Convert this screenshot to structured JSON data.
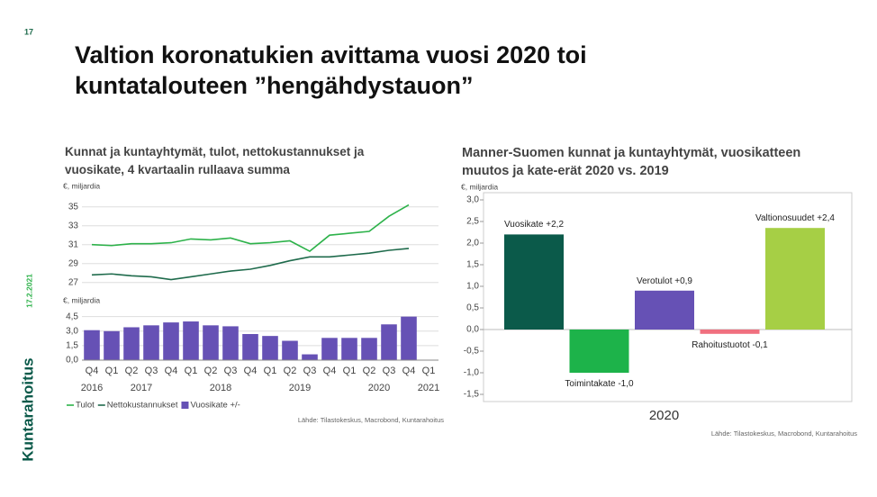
{
  "slide": {
    "page_number": "17",
    "title": "Valtion koronatukien avittama vuosi 2020 toi kuntatalouteen ”hengähdystauon”",
    "date": "17.2.2021",
    "logo": "Kuntarahoitus"
  },
  "chart_data": [
    {
      "type": "line",
      "title": "Kunnat ja kuntayhtymät, tulot, nettokustannukset ja vuosikate, 4 kvartaalin rullaava summa",
      "y_label": "€, miljardia",
      "series": [
        {
          "name": "Tulot",
          "color": "#2db24a",
          "values": [
            31.0,
            30.9,
            31.1,
            31.1,
            31.2,
            31.6,
            31.5,
            31.7,
            31.1,
            31.2,
            31.4,
            30.3,
            32.0,
            32.2,
            32.4,
            34.0,
            35.2,
            null
          ]
        },
        {
          "name": "Nettokustannukset",
          "color": "#1f6b4c",
          "values": [
            27.8,
            27.9,
            27.7,
            27.6,
            27.3,
            27.6,
            27.9,
            28.2,
            28.4,
            28.8,
            29.3,
            29.7,
            29.7,
            29.9,
            30.1,
            30.4,
            30.6,
            null
          ]
        }
      ],
      "ylim": [
        26.4,
        36.4
      ],
      "yticks": [
        27,
        29,
        31,
        33,
        35
      ],
      "grid": true
    },
    {
      "type": "bar",
      "y_label": "€, miljardia",
      "categories": [
        "Q4",
        "Q1",
        "Q2",
        "Q3",
        "Q4",
        "Q1",
        "Q2",
        "Q3",
        "Q4",
        "Q1",
        "Q2",
        "Q3",
        "Q4",
        "Q1",
        "Q2",
        "Q3",
        "Q4",
        "Q1"
      ],
      "year_labels": [
        "2016",
        null,
        "2017",
        null,
        null,
        null,
        "2018",
        null,
        null,
        null,
        "2019",
        null,
        null,
        null,
        "2020",
        null,
        null,
        "2021"
      ],
      "series": [
        {
          "name": "Vuosikate +/-",
          "color": "#6651b5",
          "values": [
            3.1,
            3.0,
            3.4,
            3.6,
            3.9,
            4.0,
            3.6,
            3.5,
            2.7,
            2.5,
            2.0,
            0.6,
            2.3,
            2.3,
            2.3,
            3.7,
            4.5,
            null
          ]
        }
      ],
      "ylim": [
        0,
        5.4
      ],
      "yticks": [
        {
          "value": 0,
          "label": "0,0"
        },
        {
          "value": 1.5,
          "label": "1,5"
        },
        {
          "value": 3,
          "label": "3,0"
        },
        {
          "value": 4.5,
          "label": "4,5"
        }
      ],
      "grid": true,
      "source": "Lähde: Tilastokeskus, Macrobond, Kuntarahoitus"
    },
    {
      "type": "bar",
      "title": "Manner-Suomen kunnat ja kuntayhtymät, vuosikatteen muutos ja kate-erät 2020 vs. 2019",
      "y_label": "€, miljardia",
      "categories": [
        "2020"
      ],
      "series": [
        {
          "color": "#0b5a4a",
          "values": [
            2.2
          ],
          "value_labels": [
            "Vuosikate +2,2"
          ]
        },
        {
          "color": "#1db34a",
          "values": [
            -1.0
          ],
          "value_labels": [
            "Toimintakate -1,0"
          ]
        },
        {
          "color": "#6651b5",
          "values": [
            0.9
          ],
          "value_labels": [
            "Verotulot +0,9"
          ]
        },
        {
          "color": "#f0707f",
          "values": [
            -0.1
          ],
          "value_labels": [
            "Rahoitustuotot -0,1"
          ]
        },
        {
          "color": "#a6cf45",
          "values": [
            2.35
          ],
          "value_labels": [
            "Valtionosuudet +2,4"
          ]
        }
      ],
      "ylim": [
        -1.5,
        3.0
      ],
      "yticks": [
        {
          "value": -1.5,
          "label": "-1,5"
        },
        {
          "value": -1,
          "label": "-1,0"
        },
        {
          "value": -0.5,
          "label": "-0,5"
        },
        {
          "value": 0,
          "label": "0,0"
        },
        {
          "value": 0.5,
          "label": "0,5"
        },
        {
          "value": 1,
          "label": "1,0"
        },
        {
          "value": 1.5,
          "label": "1,5"
        },
        {
          "value": 2,
          "label": "2,0"
        },
        {
          "value": 2.5,
          "label": "2,5"
        },
        {
          "value": 3,
          "label": "3,0"
        }
      ],
      "source": "Lähde: Tilastokeskus, Macrobond, Kuntarahoitus"
    }
  ]
}
